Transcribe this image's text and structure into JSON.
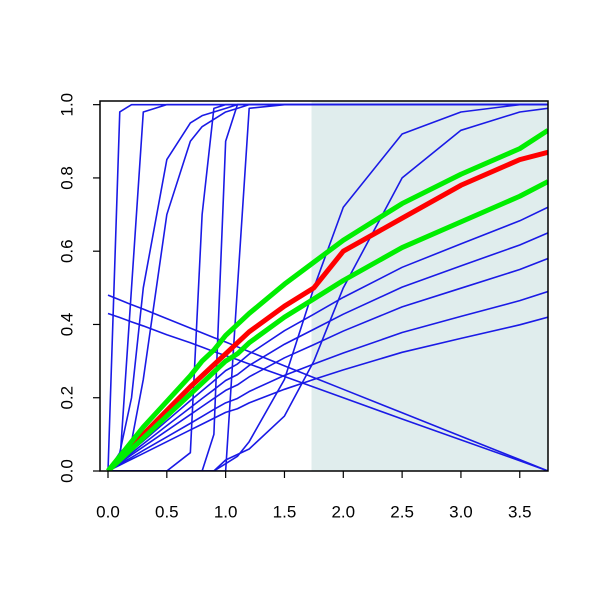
{
  "chart_data": {
    "type": "line",
    "x": [
      0,
      0.1,
      0.2,
      0.3,
      0.5,
      0.7,
      0.8,
      0.9,
      1.0,
      1.1,
      1.2,
      1.5,
      1.75,
      2.0,
      2.5,
      3.0,
      3.5,
      3.74
    ],
    "xlim": [
      -0.068,
      3.74
    ],
    "ylim": [
      0,
      1.01
    ],
    "xticks": [
      {
        "value": 0,
        "label": "0.0"
      },
      0.5,
      {
        "value": 1,
        "label": "1.0"
      },
      1.5,
      {
        "value": 2,
        "label": "2.0"
      },
      2.5,
      {
        "value": 3,
        "label": "3.0"
      },
      3.5
    ],
    "yticks": [
      {
        "value": 0,
        "label": "0.0"
      },
      0.2,
      0.4,
      0.6,
      0.8,
      {
        "value": 1,
        "label": "1.0"
      }
    ],
    "shaded_x": [
      1.73,
      3.74
    ],
    "shade_color": "#e0eded",
    "series": [
      {
        "color": "#1a1ae6",
        "values": [
          0,
          0.027,
          0.055,
          0.082,
          0.137,
          0.192,
          0.219,
          0.246,
          0.274,
          0.292,
          0.319,
          0.383,
          0.428,
          0.474,
          0.556,
          0.62,
          0.683,
          0.72
        ]
      },
      {
        "color": "#1a1ae6",
        "values": [
          0,
          0.025,
          0.049,
          0.074,
          0.124,
          0.173,
          0.198,
          0.222,
          0.247,
          0.263,
          0.288,
          0.346,
          0.387,
          0.428,
          0.502,
          0.56,
          0.617,
          0.65
        ]
      },
      {
        "color": "#1a1ae6",
        "values": [
          0,
          0.022,
          0.044,
          0.066,
          0.11,
          0.154,
          0.176,
          0.198,
          0.22,
          0.235,
          0.257,
          0.309,
          0.345,
          0.382,
          0.448,
          0.499,
          0.55,
          0.58
        ]
      },
      {
        "color": "#1a1ae6",
        "values": [
          0,
          0.019,
          0.037,
          0.056,
          0.093,
          0.13,
          0.149,
          0.168,
          0.186,
          0.198,
          0.217,
          0.261,
          0.292,
          0.322,
          0.378,
          0.422,
          0.465,
          0.49
        ]
      },
      {
        "color": "#1a1ae6",
        "values": [
          0,
          0.016,
          0.032,
          0.048,
          0.08,
          0.112,
          0.128,
          0.144,
          0.16,
          0.17,
          0.186,
          0.223,
          0.25,
          0.276,
          0.324,
          0.362,
          0.399,
          0.42
        ]
      },
      {
        "color": "#1a1ae6",
        "values": [
          0,
          0.98,
          1,
          1,
          1,
          1,
          1,
          1,
          1,
          1,
          1,
          1,
          1,
          1,
          1,
          1,
          1,
          1
        ]
      },
      {
        "color": "#1a1ae6",
        "values": [
          0,
          0.02,
          0.5,
          0.98,
          1,
          1,
          1,
          1,
          1,
          1,
          1,
          1,
          1,
          1,
          1,
          1,
          1,
          1
        ]
      },
      {
        "color": "#1a1ae6",
        "values": [
          0,
          0.05,
          0.2,
          0.5,
          0.85,
          0.95,
          0.97,
          0.98,
          0.99,
          1,
          1,
          1,
          1,
          1,
          1,
          1,
          1,
          1
        ]
      },
      {
        "color": "#1a1ae6",
        "values": [
          0,
          0.02,
          0.08,
          0.25,
          0.7,
          0.9,
          0.94,
          0.96,
          0.98,
          0.99,
          1,
          1,
          1,
          1,
          1,
          1,
          1,
          1
        ]
      },
      {
        "color": "#1a1ae6",
        "values": [
          0,
          0,
          0,
          0,
          0,
          0.05,
          0.7,
          0.99,
          1,
          1,
          1,
          1,
          1,
          1,
          1,
          1,
          1,
          1
        ]
      },
      {
        "color": "#1a1ae6",
        "values": [
          0,
          0,
          0,
          0,
          0,
          0,
          0,
          0.1,
          0.9,
          1,
          1,
          1,
          1,
          1,
          1,
          1,
          1,
          1
        ]
      },
      {
        "color": "#1a1ae6",
        "values": [
          0,
          0,
          0,
          0,
          0,
          0,
          0,
          0,
          0,
          0.5,
          0.99,
          1,
          1,
          1,
          1,
          1,
          1,
          1
        ]
      },
      {
        "color": "#1a1ae6",
        "values": [
          0,
          0,
          0,
          0,
          0,
          0,
          0,
          0,
          0.02,
          0.04,
          0.08,
          0.25,
          0.5,
          0.72,
          0.92,
          0.98,
          1,
          1
        ]
      },
      {
        "color": "#1a1ae6",
        "values": [
          0,
          0,
          0,
          0,
          0,
          0,
          0,
          0,
          0.03,
          0.045,
          0.06,
          0.15,
          0.3,
          0.5,
          0.8,
          0.93,
          0.98,
          0.99
        ]
      },
      {
        "color": "#1a1ae6",
        "values": [
          0.48,
          0.467,
          0.454,
          0.442,
          0.416,
          0.39,
          0.377,
          0.364,
          0.352,
          0.339,
          0.326,
          0.287,
          0.255,
          0.223,
          0.159,
          0.095,
          0.031,
          0
        ]
      },
      {
        "color": "#1a1ae6",
        "values": [
          0.43,
          0.419,
          0.407,
          0.396,
          0.372,
          0.35,
          0.338,
          0.326,
          0.315,
          0.304,
          0.292,
          0.258,
          0.229,
          0.2,
          0.142,
          0.085,
          0.028,
          0
        ]
      },
      {
        "color": "#ff0000",
        "values": [
          0,
          0.035,
          0.07,
          0.1,
          0.165,
          0.23,
          0.26,
          0.29,
          0.32,
          0.35,
          0.38,
          0.45,
          0.5,
          0.6,
          0.69,
          0.78,
          0.85,
          0.87
        ]
      },
      {
        "color": "#00ee00",
        "values": [
          0,
          0.04,
          0.08,
          0.12,
          0.19,
          0.26,
          0.3,
          0.33,
          0.37,
          0.4,
          0.43,
          0.51,
          0.57,
          0.63,
          0.73,
          0.81,
          0.88,
          0.93
        ]
      },
      {
        "color": "#00ee00",
        "values": [
          0,
          0.03,
          0.06,
          0.09,
          0.15,
          0.21,
          0.24,
          0.27,
          0.3,
          0.32,
          0.35,
          0.42,
          0.47,
          0.52,
          0.61,
          0.68,
          0.75,
          0.79
        ]
      }
    ]
  }
}
